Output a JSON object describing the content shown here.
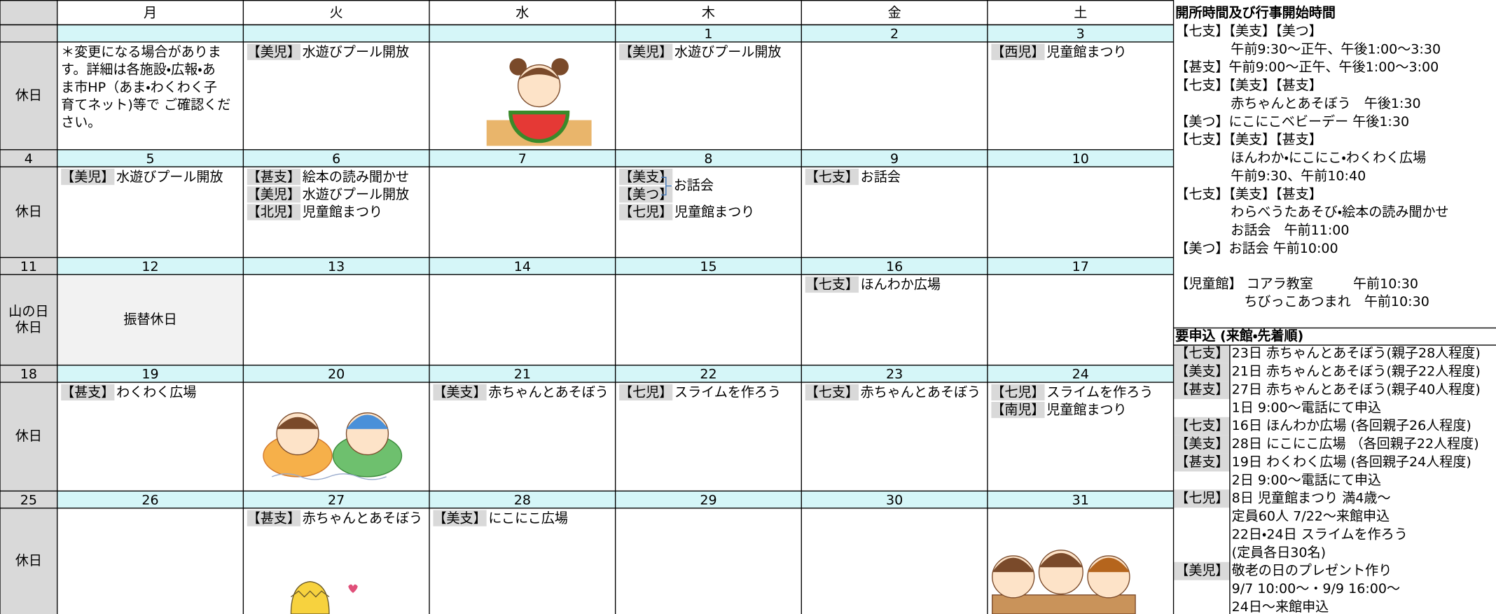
{
  "header": {
    "weekdays": [
      "月",
      "火",
      "水",
      "木",
      "金",
      "土"
    ]
  },
  "weeks": [
    {
      "dates": [
        null,
        null,
        null,
        null,
        1,
        2,
        3
      ],
      "label": [
        "休日"
      ],
      "cells": [
        {
          "items": [
            {
              "text": "＊変更になる場合がありま"
            },
            {
              "text": "す。詳細は各施設・広報・あ"
            },
            {
              "text": "ま市HP（あま・わくわく子"
            },
            {
              "text": "育てネット)等で ご確認くだ"
            },
            {
              "text": "さい。"
            }
          ]
        },
        {
          "items": [
            {
              "tag": "【美児】",
              "text": "水遊びプール開放"
            }
          ]
        },
        {
          "items": []
        },
        {
          "items": [
            {
              "tag": "【美児】",
              "text": "水遊びプール開放"
            }
          ]
        },
        {
          "items": []
        },
        {
          "items": [
            {
              "tag": "【西児】",
              "text": "児童館まつり"
            }
          ]
        }
      ]
    },
    {
      "dates": [
        4,
        5,
        6,
        7,
        8,
        9,
        10
      ],
      "label": [
        "休日"
      ],
      "cells": [
        {
          "items": [
            {
              "tag": "【美児】",
              "text": "水遊びプール開放"
            }
          ]
        },
        {
          "items": [
            {
              "tag": "【甚支】",
              "text": "絵本の読み聞かせ"
            },
            {
              "tag": "【美児】",
              "text": "水遊びプール開放"
            },
            {
              "tag": "【北児】",
              "text": "児童館まつり"
            }
          ]
        },
        {
          "items": []
        },
        {
          "items": [
            {
              "tag": "【美支】"
            },
            {
              "tag": "【美つ】"
            },
            {
              "tag": "【七児】",
              "text": "児童館まつり"
            }
          ],
          "bracket": "お話会"
        },
        {
          "items": [
            {
              "tag": "【七支】",
              "text": "お話会"
            }
          ]
        },
        {
          "items": []
        }
      ]
    },
    {
      "dates": [
        11,
        12,
        13,
        14,
        15,
        16,
        17
      ],
      "label": [
        "山の日",
        "休日"
      ],
      "cells": [
        {
          "items": [],
          "holiday": "振替休日"
        },
        {
          "items": []
        },
        {
          "items": []
        },
        {
          "items": []
        },
        {
          "items": [
            {
              "tag": "【七支】",
              "text": "ほんわか広場"
            }
          ]
        },
        {
          "items": []
        }
      ]
    },
    {
      "dates": [
        18,
        19,
        20,
        21,
        22,
        23,
        24
      ],
      "label": [
        "休日"
      ],
      "cells": [
        {
          "items": [
            {
              "tag": "【甚支】",
              "text": "わくわく広場"
            }
          ]
        },
        {
          "items": []
        },
        {
          "items": [
            {
              "tag": "【美支】",
              "text": "赤ちゃんとあそぼう"
            }
          ]
        },
        {
          "items": [
            {
              "tag": "【七児】",
              "text": "スライムを作ろう"
            }
          ]
        },
        {
          "items": [
            {
              "tag": "【七支】",
              "text": "赤ちゃんとあそぼう"
            }
          ]
        },
        {
          "items": [
            {
              "tag": "【七児】",
              "text": "スライムを作ろう"
            },
            {
              "tag": "【南児】",
              "text": "児童館まつり"
            }
          ]
        }
      ]
    },
    {
      "dates": [
        25,
        26,
        27,
        28,
        29,
        30,
        31
      ],
      "label": [
        "休日"
      ],
      "cells": [
        {
          "items": []
        },
        {
          "items": [
            {
              "tag": "【甚支】",
              "text": "赤ちゃんとあそぼう"
            }
          ]
        },
        {
          "items": [
            {
              "tag": "【美支】",
              "text": "にこにこ広場"
            }
          ]
        },
        {
          "items": []
        },
        {
          "items": []
        },
        {
          "items": []
        }
      ]
    }
  ],
  "opening": {
    "title": "開所時間及び行事開始時間",
    "lines": [
      "【七支】【美支】【美つ】",
      "午前9:30～正午、午後1:00～3:30",
      "【甚支】午前9:00～正午、午後1:00～3:00",
      "【七支】【美支】【甚支】",
      "赤ちゃんとあそぼう　午後1:30",
      "【美つ】にこにこベビーデー  午後1:30",
      "【七支】【美支】【甚支】",
      "ほんわか・にこにこ・わくわく広場",
      "午前9:30、午前10:40",
      "【七支】【美支】【甚支】",
      "わらべうたあそび・絵本の読み聞かせ",
      "お話会　午前11:00",
      "【美つ】お話会  午前10:00"
    ],
    "hall": [
      "【児童館】 コアラ教室　　　午前10:30",
      "ちびっこあつまれ　午前10:30"
    ]
  },
  "reservation": {
    "title": "要申込 (来館・先着順)",
    "rows": [
      {
        "tag": "【七支】",
        "text": "23日 赤ちゃんとあそぼう(親子28人程度)"
      },
      {
        "tag": "【美支】",
        "text": "21日 赤ちゃんとあそぼう(親子22人程度)"
      },
      {
        "tag": "【甚支】",
        "text": "27日 赤ちゃんとあそぼう(親子40人程度)"
      },
      {
        "text": "1日  9:00～電話にて申込"
      },
      {
        "tag": "【七支】",
        "text": "16日 ほんわか広場 (各回親子26人程度)"
      },
      {
        "tag": "【美支】",
        "text": "28日 にこにこ広場 （各回親子22人程度)"
      },
      {
        "tag": "【甚支】",
        "text": "19日 わくわく広場 (各回親子24人程度)"
      },
      {
        "text": "2日 9:00～電話にて申込"
      },
      {
        "tag": "【七児】",
        "text": "8日 児童館まつり  満4歳～"
      },
      {
        "text": "定員60人 7/22～来館申込"
      },
      {
        "text": "22日・24日  スライムを作ろう"
      },
      {
        "text": "(定員各日30名)"
      },
      {
        "tag": "【美児】",
        "text": "敬老の日のプレゼント作り"
      },
      {
        "text": "9/7 10:00～・9/9 16:00～"
      },
      {
        "text": "24日～来館申込"
      }
    ]
  }
}
